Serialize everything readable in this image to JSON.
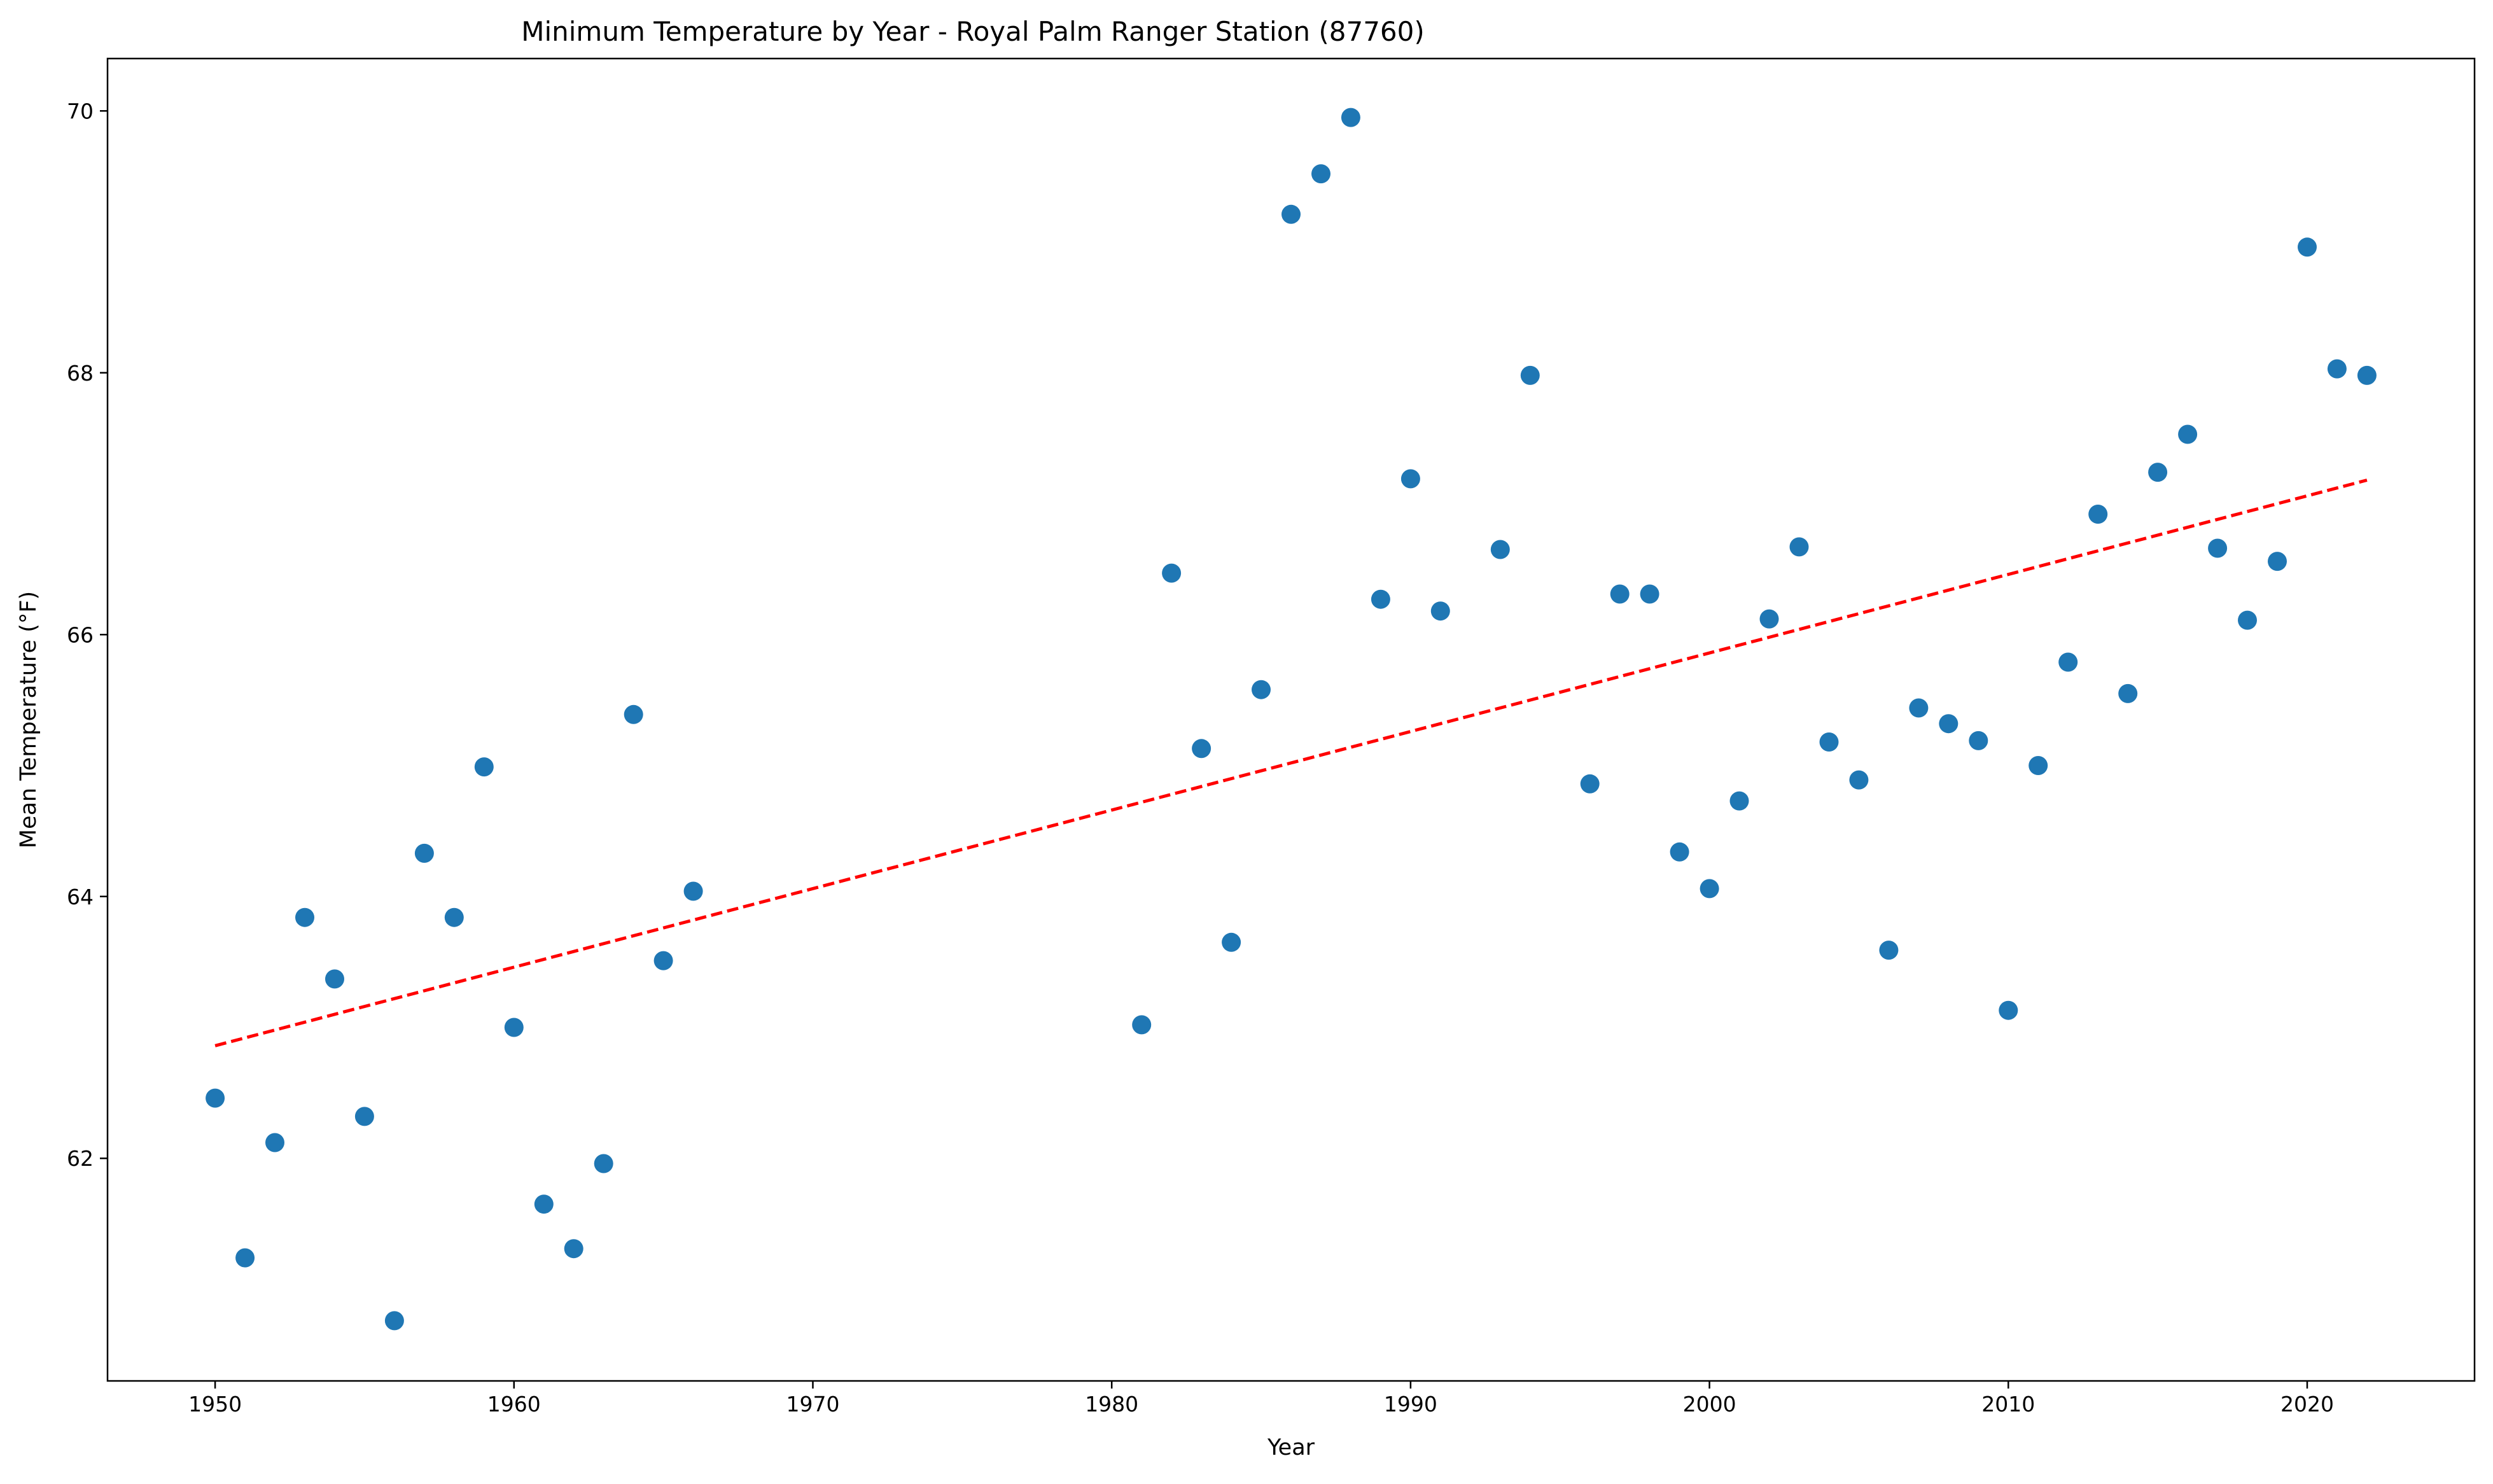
{
  "chart_data": {
    "type": "scatter",
    "title": "Minimum Temperature by Year - Royal Palm Ranger Station (87760)",
    "xlabel": "Year",
    "ylabel": "Mean Temperature (°F)",
    "xlim": [
      1946.4,
      2025.6
    ],
    "ylim": [
      60.3,
      70.4
    ],
    "x_ticks": [
      1950,
      1960,
      1970,
      1980,
      1990,
      2000,
      2010,
      2020
    ],
    "y_ticks": [
      62,
      64,
      66,
      68,
      70
    ],
    "grid": false,
    "legend": "none",
    "series": [
      {
        "marker_color": "#1f77b4",
        "points": [
          [
            1950,
            62.46
          ],
          [
            1951,
            61.24
          ],
          [
            1952,
            62.12
          ],
          [
            1953,
            63.84
          ],
          [
            1954,
            63.37
          ],
          [
            1955,
            62.32
          ],
          [
            1956,
            60.76
          ],
          [
            1957,
            64.33
          ],
          [
            1958,
            63.84
          ],
          [
            1959,
            64.99
          ],
          [
            1960,
            63.0
          ],
          [
            1961,
            61.65
          ],
          [
            1962,
            61.31
          ],
          [
            1963,
            61.96
          ],
          [
            1964,
            65.39
          ],
          [
            1965,
            63.51
          ],
          [
            1966,
            64.04
          ],
          [
            1981,
            63.02
          ],
          [
            1982,
            66.47
          ],
          [
            1983,
            65.13
          ],
          [
            1984,
            63.65
          ],
          [
            1985,
            65.58
          ],
          [
            1986,
            69.21
          ],
          [
            1987,
            69.52
          ],
          [
            1988,
            69.95
          ],
          [
            1989,
            66.27
          ],
          [
            1990,
            67.19
          ],
          [
            1991,
            66.18
          ],
          [
            1993,
            66.65
          ],
          [
            1994,
            67.98
          ],
          [
            1996,
            64.86
          ],
          [
            1997,
            66.31
          ],
          [
            1998,
            66.31
          ],
          [
            1999,
            64.34
          ],
          [
            2000,
            64.06
          ],
          [
            2001,
            64.73
          ],
          [
            2002,
            66.12
          ],
          [
            2003,
            66.67
          ],
          [
            2004,
            65.18
          ],
          [
            2005,
            64.89
          ],
          [
            2006,
            63.59
          ],
          [
            2007,
            65.44
          ],
          [
            2008,
            65.32
          ],
          [
            2009,
            65.19
          ],
          [
            2010,
            63.13
          ],
          [
            2011,
            65.0
          ],
          [
            2012,
            65.79
          ],
          [
            2013,
            66.92
          ],
          [
            2014,
            65.55
          ],
          [
            2015,
            67.24
          ],
          [
            2016,
            67.53
          ],
          [
            2017,
            66.66
          ],
          [
            2018,
            66.11
          ],
          [
            2019,
            66.56
          ],
          [
            2020,
            68.96
          ],
          [
            2021,
            68.03
          ],
          [
            2022,
            67.98
          ]
        ]
      }
    ],
    "trendline": {
      "style": "dashed",
      "color": "#ff0000",
      "x": [
        1950,
        2022
      ],
      "y": [
        62.86,
        67.18
      ]
    }
  }
}
